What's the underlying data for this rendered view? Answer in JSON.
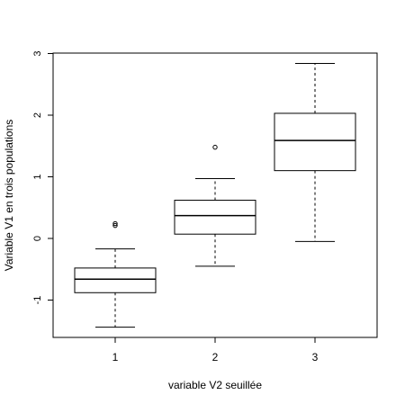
{
  "chart_data": {
    "type": "box",
    "xlabel": "variable V2 seuillée",
    "ylabel": "Variable V1 en trois populations",
    "categories": [
      "1",
      "2",
      "3"
    ],
    "yticks": [
      -1,
      0,
      1,
      2,
      3
    ],
    "ytick_labels": [
      "-1",
      "0",
      "1",
      "2",
      "3"
    ],
    "ylim": [
      -1.6,
      3.0
    ],
    "boxes": [
      {
        "category": "1",
        "whisker_low": -1.44,
        "q1": -0.88,
        "median": -0.66,
        "q3": -0.48,
        "whisker_high": -0.17,
        "outliers": [
          0.21,
          0.24
        ]
      },
      {
        "category": "2",
        "whisker_low": -0.45,
        "q1": 0.07,
        "median": 0.37,
        "q3": 0.62,
        "whisker_high": 0.97,
        "outliers": [
          1.48
        ]
      },
      {
        "category": "3",
        "whisker_low": -0.05,
        "q1": 1.1,
        "median": 1.59,
        "q3": 2.03,
        "whisker_high": 2.84,
        "outliers": []
      }
    ]
  }
}
